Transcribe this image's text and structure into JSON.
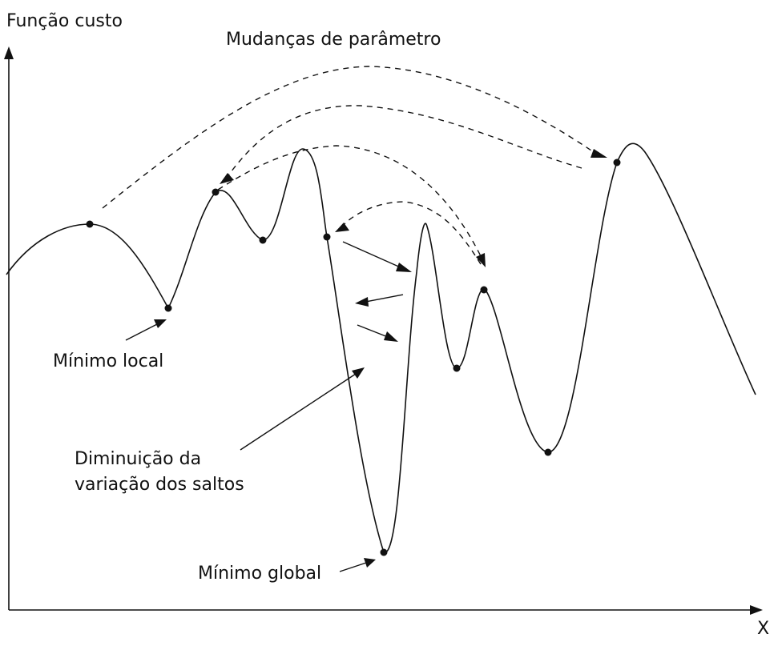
{
  "labels": {
    "y_axis": "Função custo",
    "x_axis": "X",
    "title": "Mudanças de parâmetro",
    "local_min": "Mínimo local",
    "jump_decrease_line1": "Diminuição da",
    "jump_decrease_line2": "variação dos saltos",
    "global_min": "Mínimo global"
  },
  "colors": {
    "ink": "#111111",
    "background": "#ffffff"
  }
}
